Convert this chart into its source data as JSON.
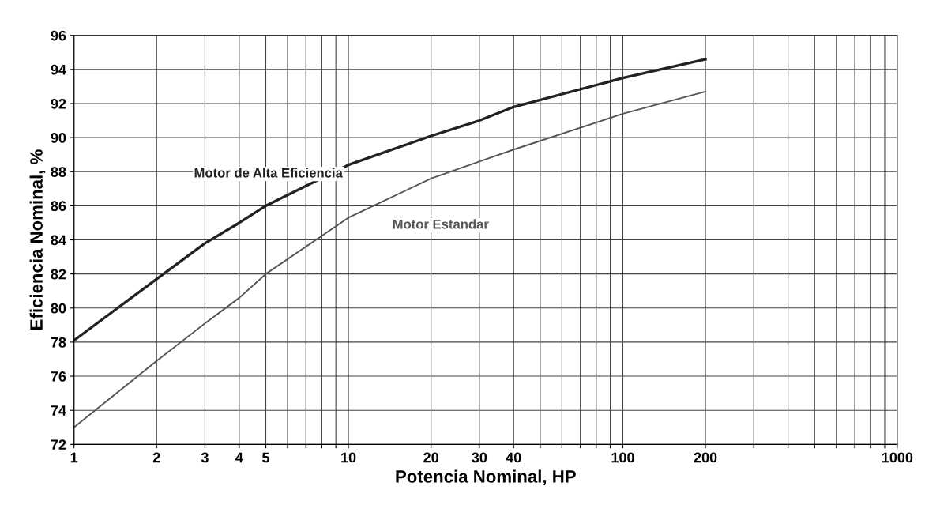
{
  "chart_data": {
    "type": "line",
    "xlabel": "Potencia Nominal, HP",
    "ylabel": "Eficiencia Nominal, %",
    "log": "x",
    "grid": true,
    "legend": false,
    "marker": "none",
    "line_style": "solid",
    "xlim": [
      1,
      1000
    ],
    "ylim": [
      72,
      96
    ],
    "xticks": [
      1,
      2,
      3,
      4,
      5,
      {
        "value": 6,
        "label": null
      },
      {
        "value": 7,
        "label": null
      },
      {
        "value": 8,
        "label": null
      },
      {
        "value": 9,
        "label": null
      },
      10,
      20,
      30,
      40,
      {
        "value": 50,
        "label": null
      },
      {
        "value": 60,
        "label": null
      },
      {
        "value": 70,
        "label": null
      },
      {
        "value": 80,
        "label": null
      },
      {
        "value": 90,
        "label": null
      },
      100,
      200,
      {
        "value": 300,
        "label": null
      },
      {
        "value": 400,
        "label": null
      },
      {
        "value": 500,
        "label": null
      },
      {
        "value": 600,
        "label": null
      },
      {
        "value": 700,
        "label": null
      },
      {
        "value": 800,
        "label": null
      },
      {
        "value": 900,
        "label": null
      },
      1000
    ],
    "yticks": [
      72,
      74,
      76,
      78,
      80,
      82,
      84,
      86,
      88,
      90,
      92,
      94,
      96
    ],
    "series": [
      {
        "name": "Motor de Alta Eficiencia",
        "color": "#222222",
        "x": [
          1,
          2,
          3,
          4,
          5,
          10,
          20,
          30,
          40,
          100,
          200
        ],
        "values": [
          78.1,
          81.7,
          83.8,
          85.0,
          86.0,
          88.4,
          90.1,
          91.0,
          91.8,
          93.5,
          94.6
        ]
      },
      {
        "name": "Motor Estandar",
        "color": "#555555",
        "x": [
          1,
          2,
          3,
          4,
          5,
          10,
          20,
          30,
          40,
          100,
          200
        ],
        "values": [
          73.0,
          76.9,
          79.1,
          80.6,
          82.0,
          85.3,
          87.6,
          88.6,
          89.3,
          91.4,
          92.7
        ]
      }
    ]
  }
}
